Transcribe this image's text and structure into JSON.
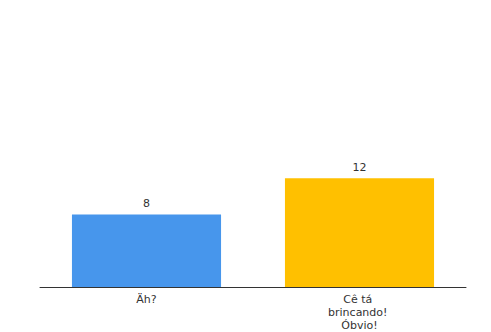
{
  "chart_data": {
    "type": "bar",
    "categories": [
      "Äh?",
      "Cê tá brincando! Óbvio!"
    ],
    "values": [
      8,
      12
    ],
    "colors": [
      "#4796ec",
      "#ffc000"
    ],
    "ylim": [
      0,
      28
    ],
    "grid": false,
    "data_labels": true,
    "tick_labels": "x"
  }
}
